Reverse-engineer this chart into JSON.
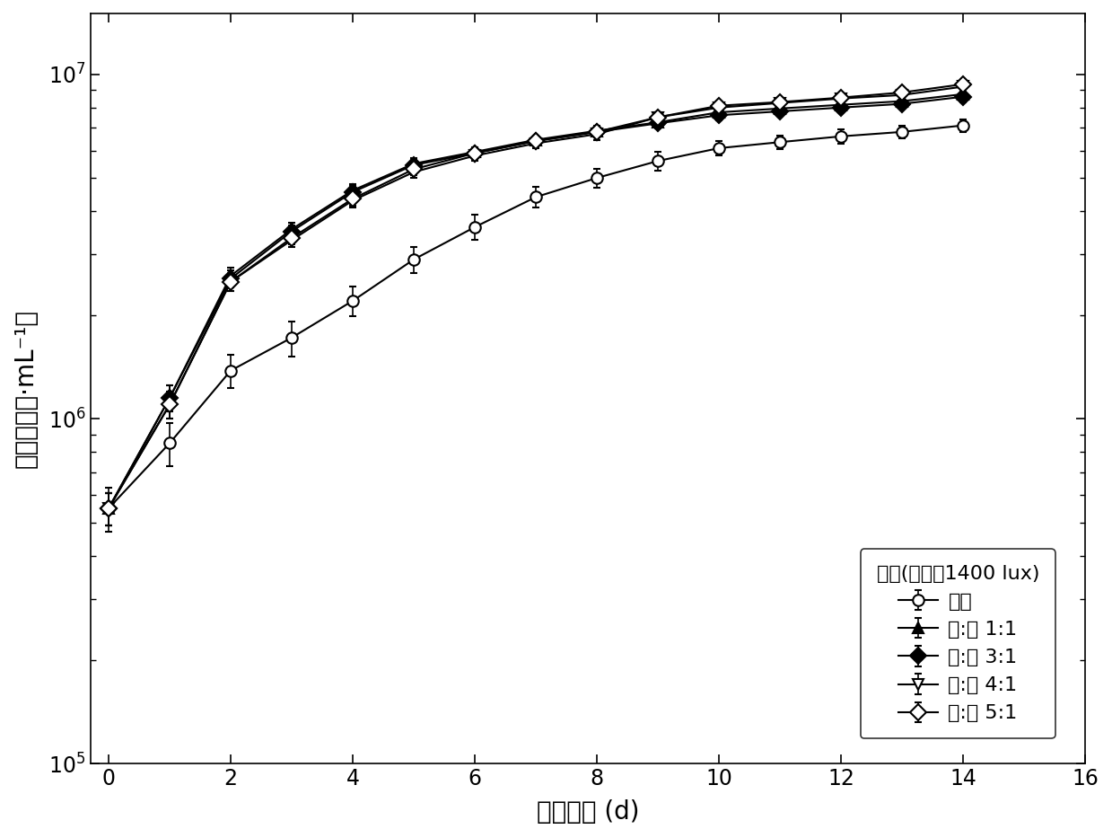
{
  "x": [
    0,
    1,
    2,
    3,
    4,
    5,
    6,
    7,
    8,
    9,
    10,
    11,
    12,
    13,
    14
  ],
  "series": [
    {
      "name": "白光",
      "y": [
        550000.0,
        850000.0,
        1380000.0,
        1720000.0,
        2200000.0,
        2900000.0,
        3600000.0,
        4400000.0,
        5000000.0,
        5600000.0,
        6100000.0,
        6350000.0,
        6600000.0,
        6800000.0,
        7100000.0
      ],
      "yerr": [
        80000.0,
        120000.0,
        150000.0,
        200000.0,
        220000.0,
        250000.0,
        300000.0,
        300000.0,
        320000.0,
        350000.0,
        300000.0,
        300000.0,
        300000.0,
        300000.0,
        300000.0
      ],
      "marker": "o",
      "filled": false,
      "label": "白光"
    },
    {
      "name": "红:蓝 1:1",
      "y": [
        550000.0,
        1150000.0,
        2600000.0,
        3550000.0,
        4600000.0,
        5500000.0,
        5950000.0,
        6450000.0,
        6850000.0,
        7250000.0,
        7750000.0,
        7950000.0,
        8150000.0,
        8350000.0,
        8750000.0
      ],
      "yerr": [
        60000.0,
        100000.0,
        150000.0,
        150000.0,
        200000.0,
        200000.0,
        200000.0,
        200000.0,
        250000.0,
        250000.0,
        250000.0,
        250000.0,
        250000.0,
        250000.0,
        300000.0
      ],
      "marker": "^",
      "filled": true,
      "label": "红:蓝 1:1"
    },
    {
      "name": "红:蓝 3:1",
      "y": [
        550000.0,
        1150000.0,
        2550000.0,
        3500000.0,
        4550000.0,
        5450000.0,
        5900000.0,
        6400000.0,
        6800000.0,
        7200000.0,
        7600000.0,
        7800000.0,
        8000000.0,
        8200000.0,
        8600000.0
      ],
      "yerr": [
        60000.0,
        100000.0,
        150000.0,
        150000.0,
        200000.0,
        200000.0,
        200000.0,
        200000.0,
        250000.0,
        250000.0,
        250000.0,
        250000.0,
        250000.0,
        250000.0,
        300000.0
      ],
      "marker": "D",
      "filled": true,
      "label": "红:蓝 3:1"
    },
    {
      "name": "红:蓝 4:1",
      "y": [
        550000.0,
        1100000.0,
        2500000.0,
        3300000.0,
        4300000.0,
        5200000.0,
        5800000.0,
        6300000.0,
        6700000.0,
        7500000.0,
        8000000.0,
        8250000.0,
        8500000.0,
        8700000.0,
        9200000.0
      ],
      "yerr": [
        60000.0,
        100000.0,
        150000.0,
        150000.0,
        200000.0,
        200000.0,
        200000.0,
        200000.0,
        250000.0,
        250000.0,
        250000.0,
        250000.0,
        250000.0,
        250000.0,
        300000.0
      ],
      "marker": "v",
      "filled": false,
      "label": "红:蓝 4:1"
    },
    {
      "name": "红:蓝 5:1",
      "y": [
        550000.0,
        1100000.0,
        2500000.0,
        3350000.0,
        4350000.0,
        5300000.0,
        5900000.0,
        6400000.0,
        6800000.0,
        7500000.0,
        8100000.0,
        8300000.0,
        8550000.0,
        8850000.0,
        9350000.0
      ],
      "yerr": [
        60000.0,
        100000.0,
        150000.0,
        150000.0,
        200000.0,
        200000.0,
        200000.0,
        200000.0,
        250000.0,
        250000.0,
        250000.0,
        250000.0,
        250000.0,
        250000.0,
        300000.0
      ],
      "marker": "D",
      "filled": false,
      "label": "红:蓝 5:1"
    }
  ],
  "xlabel": "培养时间 (d)",
  "ylabel": "藻密度（个·mL⁻¹）",
  "ylim": [
    100000.0,
    15000000.0
  ],
  "xlim": [
    -0.3,
    16
  ],
  "xticks": [
    0,
    2,
    4,
    6,
    8,
    10,
    12,
    14,
    16
  ],
  "legend_title": "光源(总光強1400 lux)",
  "background_color": "#ffffff",
  "line_color": "#000000",
  "linewidth": 1.5,
  "markersize": 9,
  "capsize": 3,
  "fontsize_label": 20,
  "fontsize_tick": 17,
  "fontsize_legend": 16
}
